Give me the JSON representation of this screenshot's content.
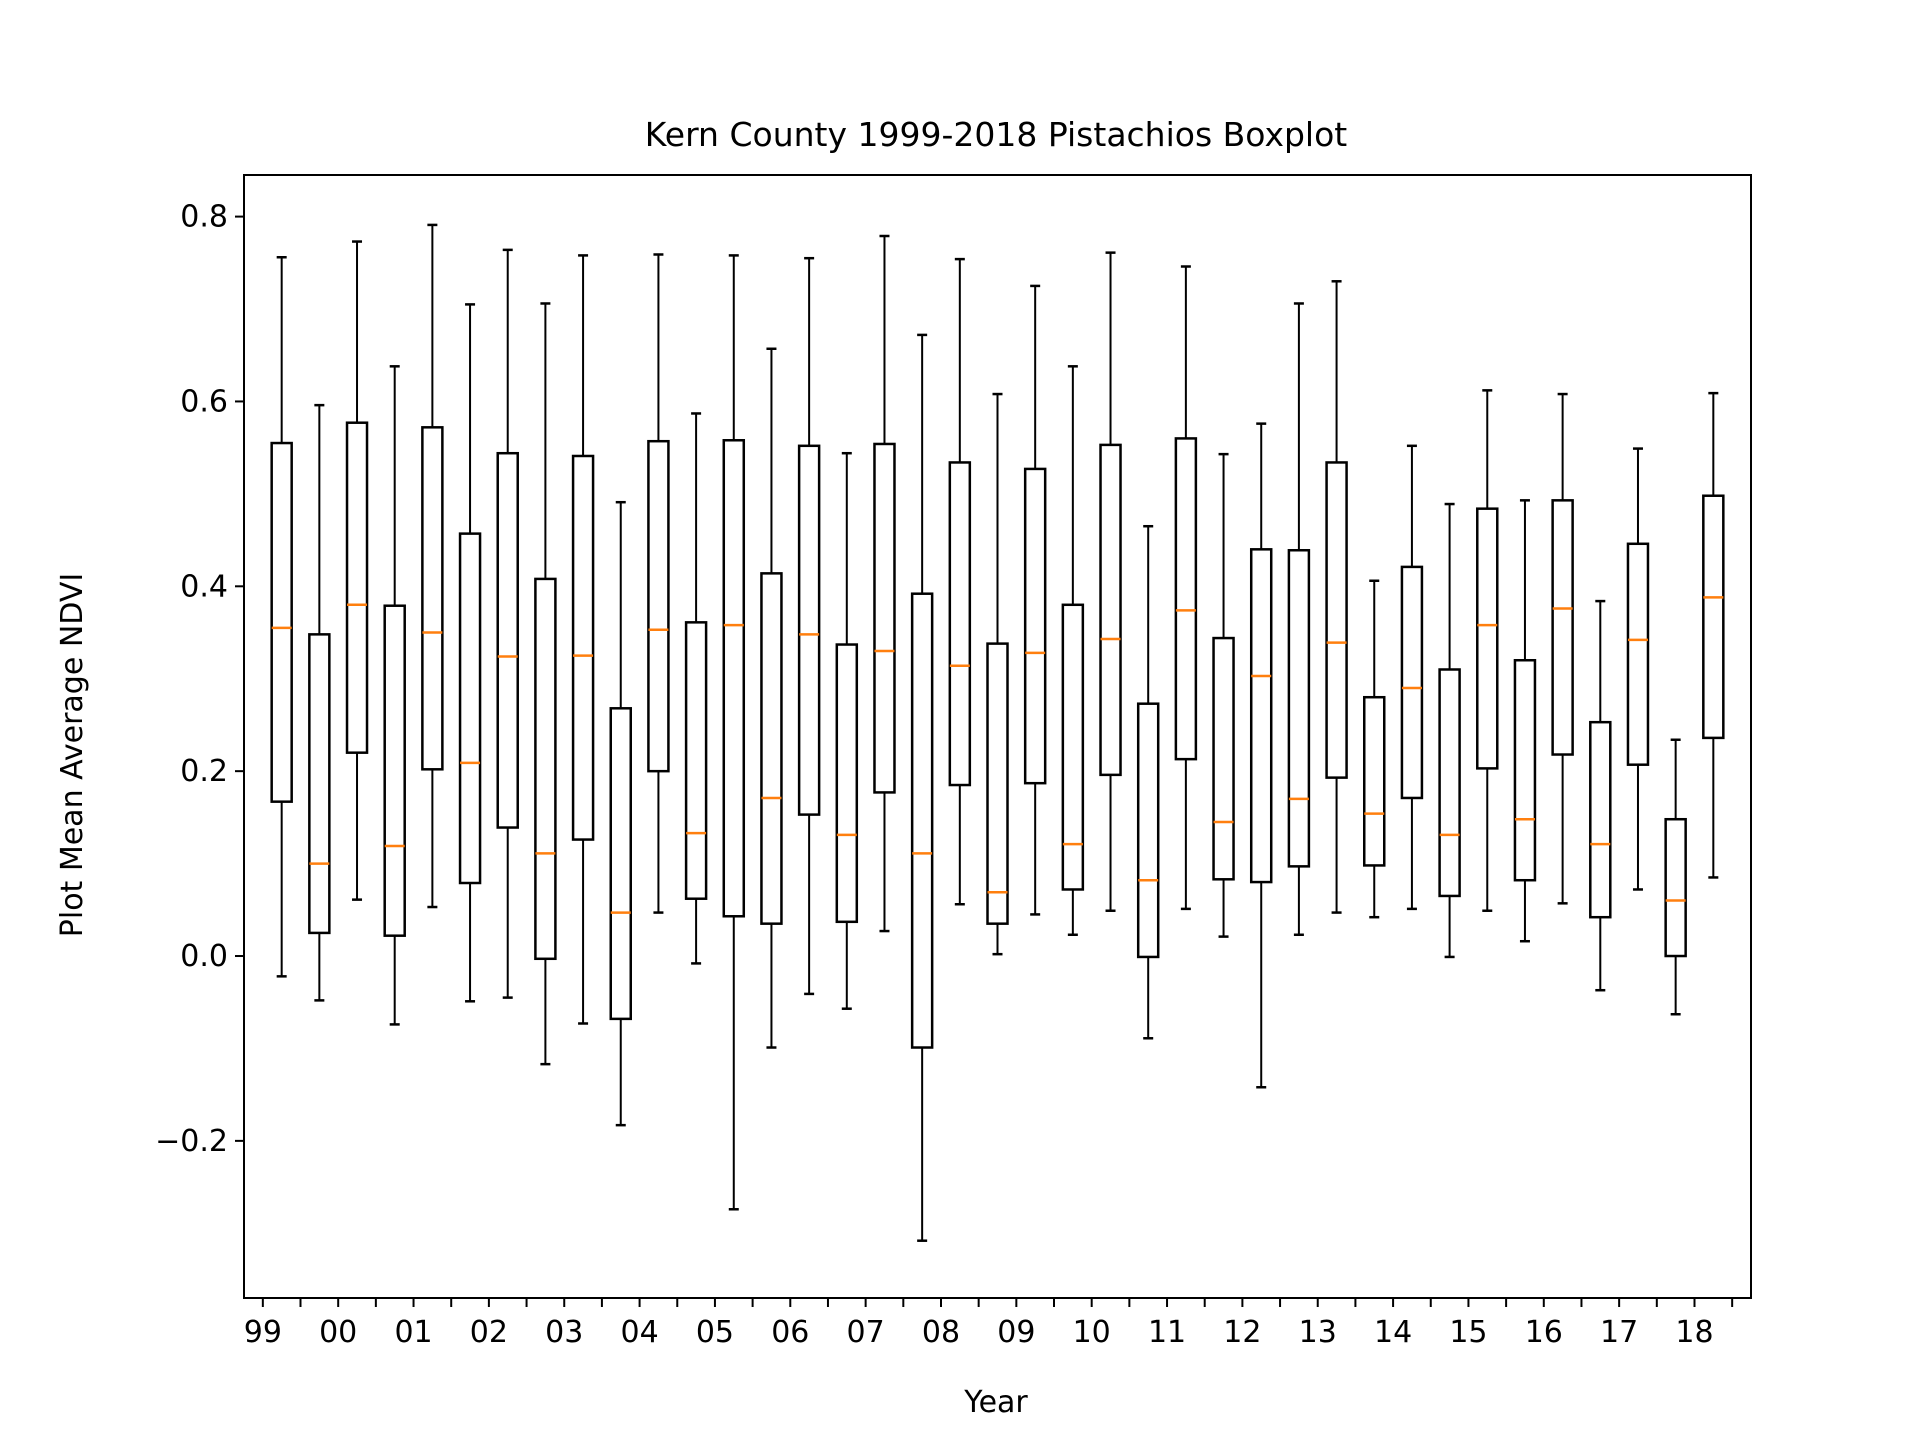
{
  "chart_data": {
    "type": "boxplot",
    "title": "Kern County 1999-2018 Pistachios Boxplot",
    "xlabel": "Year",
    "ylabel": "Plot Mean Average NDVI",
    "ylim": [
      -0.37,
      0.845
    ],
    "yticks": [
      -0.2,
      0.0,
      0.2,
      0.4,
      0.6,
      0.8
    ],
    "ytick_labels": [
      "−0.2",
      "0.0",
      "0.2",
      "0.4",
      "0.6",
      "0.8"
    ],
    "xtick_labels": [
      "99",
      "00",
      "01",
      "02",
      "03",
      "04",
      "05",
      "06",
      "07",
      "08",
      "09",
      "10",
      "11",
      "12",
      "13",
      "14",
      "15",
      "16",
      "17",
      "18"
    ],
    "grid": false,
    "colors": {
      "box": "#000000",
      "median": "#ff7f0e"
    },
    "boxes": [
      {
        "whislo": -0.022,
        "q1": 0.167,
        "med": 0.355,
        "q3": 0.555,
        "whishi": 0.756
      },
      {
        "whislo": -0.048,
        "q1": 0.025,
        "med": 0.1,
        "q3": 0.348,
        "whishi": 0.596
      },
      {
        "whislo": 0.061,
        "q1": 0.22,
        "med": 0.38,
        "q3": 0.577,
        "whishi": 0.773
      },
      {
        "whislo": -0.074,
        "q1": 0.022,
        "med": 0.119,
        "q3": 0.379,
        "whishi": 0.638
      },
      {
        "whislo": 0.053,
        "q1": 0.202,
        "med": 0.35,
        "q3": 0.572,
        "whishi": 0.791
      },
      {
        "whislo": -0.049,
        "q1": 0.079,
        "med": 0.209,
        "q3": 0.457,
        "whishi": 0.705
      },
      {
        "whislo": -0.045,
        "q1": 0.139,
        "med": 0.324,
        "q3": 0.544,
        "whishi": 0.764
      },
      {
        "whislo": -0.117,
        "q1": -0.003,
        "med": 0.111,
        "q3": 0.408,
        "whishi": 0.706
      },
      {
        "whislo": -0.073,
        "q1": 0.126,
        "med": 0.325,
        "q3": 0.541,
        "whishi": 0.758
      },
      {
        "whislo": -0.183,
        "q1": -0.068,
        "med": 0.047,
        "q3": 0.268,
        "whishi": 0.491
      },
      {
        "whislo": 0.047,
        "q1": 0.2,
        "med": 0.353,
        "q3": 0.557,
        "whishi": 0.759
      },
      {
        "whislo": -0.008,
        "q1": 0.062,
        "med": 0.133,
        "q3": 0.361,
        "whishi": 0.587
      },
      {
        "whislo": -0.274,
        "q1": 0.043,
        "med": 0.358,
        "q3": 0.558,
        "whishi": 0.758
      },
      {
        "whislo": -0.099,
        "q1": 0.035,
        "med": 0.171,
        "q3": 0.414,
        "whishi": 0.657
      },
      {
        "whislo": -0.041,
        "q1": 0.153,
        "med": 0.348,
        "q3": 0.552,
        "whishi": 0.755
      },
      {
        "whislo": -0.057,
        "q1": 0.037,
        "med": 0.131,
        "q3": 0.337,
        "whishi": 0.544
      },
      {
        "whislo": 0.027,
        "q1": 0.177,
        "med": 0.33,
        "q3": 0.554,
        "whishi": 0.779
      },
      {
        "whislo": -0.308,
        "q1": -0.099,
        "med": 0.111,
        "q3": 0.392,
        "whishi": 0.672
      },
      {
        "whislo": 0.056,
        "q1": 0.185,
        "med": 0.314,
        "q3": 0.534,
        "whishi": 0.754
      },
      {
        "whislo": 0.002,
        "q1": 0.035,
        "med": 0.069,
        "q3": 0.338,
        "whishi": 0.608
      },
      {
        "whislo": 0.045,
        "q1": 0.187,
        "med": 0.328,
        "q3": 0.527,
        "whishi": 0.725
      },
      {
        "whislo": 0.023,
        "q1": 0.072,
        "med": 0.121,
        "q3": 0.38,
        "whishi": 0.638
      },
      {
        "whislo": 0.049,
        "q1": 0.196,
        "med": 0.343,
        "q3": 0.553,
        "whishi": 0.761
      },
      {
        "whislo": -0.089,
        "q1": -0.001,
        "med": 0.082,
        "q3": 0.273,
        "whishi": 0.465
      },
      {
        "whislo": 0.051,
        "q1": 0.213,
        "med": 0.374,
        "q3": 0.56,
        "whishi": 0.746
      },
      {
        "whislo": 0.021,
        "q1": 0.083,
        "med": 0.145,
        "q3": 0.344,
        "whishi": 0.543
      },
      {
        "whislo": -0.142,
        "q1": 0.08,
        "med": 0.303,
        "q3": 0.44,
        "whishi": 0.576
      },
      {
        "whislo": 0.023,
        "q1": 0.097,
        "med": 0.17,
        "q3": 0.439,
        "whishi": 0.706
      },
      {
        "whislo": 0.047,
        "q1": 0.193,
        "med": 0.339,
        "q3": 0.534,
        "whishi": 0.73
      },
      {
        "whislo": 0.042,
        "q1": 0.098,
        "med": 0.154,
        "q3": 0.28,
        "whishi": 0.406
      },
      {
        "whislo": 0.051,
        "q1": 0.171,
        "med": 0.29,
        "q3": 0.421,
        "whishi": 0.552
      },
      {
        "whislo": -0.001,
        "q1": 0.065,
        "med": 0.131,
        "q3": 0.31,
        "whishi": 0.489
      },
      {
        "whislo": 0.049,
        "q1": 0.203,
        "med": 0.358,
        "q3": 0.484,
        "whishi": 0.612
      },
      {
        "whislo": 0.016,
        "q1": 0.082,
        "med": 0.148,
        "q3": 0.32,
        "whishi": 0.493
      },
      {
        "whislo": 0.057,
        "q1": 0.218,
        "med": 0.376,
        "q3": 0.493,
        "whishi": 0.608
      },
      {
        "whislo": -0.037,
        "q1": 0.042,
        "med": 0.121,
        "q3": 0.253,
        "whishi": 0.384
      },
      {
        "whislo": 0.072,
        "q1": 0.207,
        "med": 0.342,
        "q3": 0.446,
        "whishi": 0.549
      },
      {
        "whislo": -0.063,
        "q1": 0.0,
        "med": 0.06,
        "q3": 0.148,
        "whishi": 0.234
      },
      {
        "whislo": 0.085,
        "q1": 0.236,
        "med": 0.388,
        "q3": 0.498,
        "whishi": 0.609
      }
    ]
  }
}
